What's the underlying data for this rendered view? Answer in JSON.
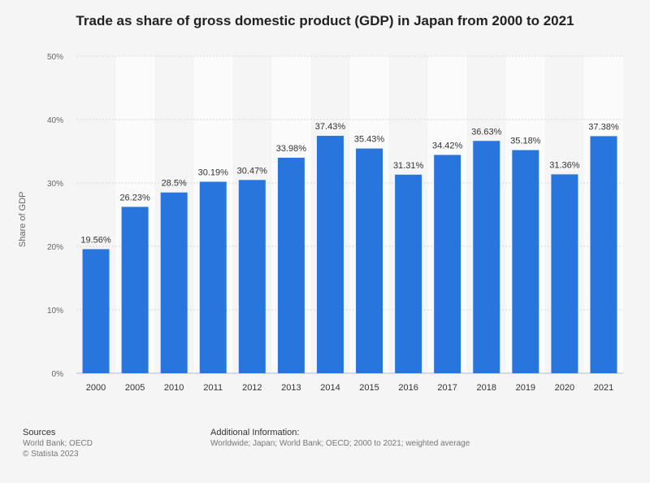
{
  "title": "Trade as share of gross domestic product (GDP) in Japan from 2000 to 2021",
  "chart_data": {
    "type": "bar",
    "title": "Trade as share of gross domestic product (GDP) in Japan from 2000 to 2021",
    "xlabel": "",
    "ylabel": "Share of GDP",
    "categories": [
      "2000",
      "2005",
      "2010",
      "2011",
      "2012",
      "2013",
      "2014",
      "2015",
      "2016",
      "2017",
      "2018",
      "2019",
      "2020",
      "2021"
    ],
    "values": [
      19.56,
      26.23,
      28.5,
      30.19,
      30.47,
      33.98,
      37.43,
      35.43,
      31.31,
      34.42,
      36.63,
      35.18,
      31.36,
      37.38
    ],
    "value_labels": [
      "19.56%",
      "26.23%",
      "28.5%",
      "30.19%",
      "30.47%",
      "33.98%",
      "37.43%",
      "35.43%",
      "31.31%",
      "34.42%",
      "36.63%",
      "35.18%",
      "31.36%",
      "37.38%"
    ],
    "ylim": [
      0,
      50
    ],
    "yticks": [
      0,
      10,
      20,
      30,
      40,
      50
    ],
    "ytick_labels": [
      "0%",
      "10%",
      "20%",
      "30%",
      "40%",
      "50%"
    ],
    "grid": true,
    "bar_color": "#2876dd"
  },
  "footer": {
    "sources_heading": "Sources",
    "sources_line1": "World Bank; OECD",
    "sources_line2": "© Statista 2023",
    "additional_heading": "Additional Information:",
    "additional_text": "Worldwide; Japan; World Bank; OECD; 2000 to 2021; weighted average"
  }
}
